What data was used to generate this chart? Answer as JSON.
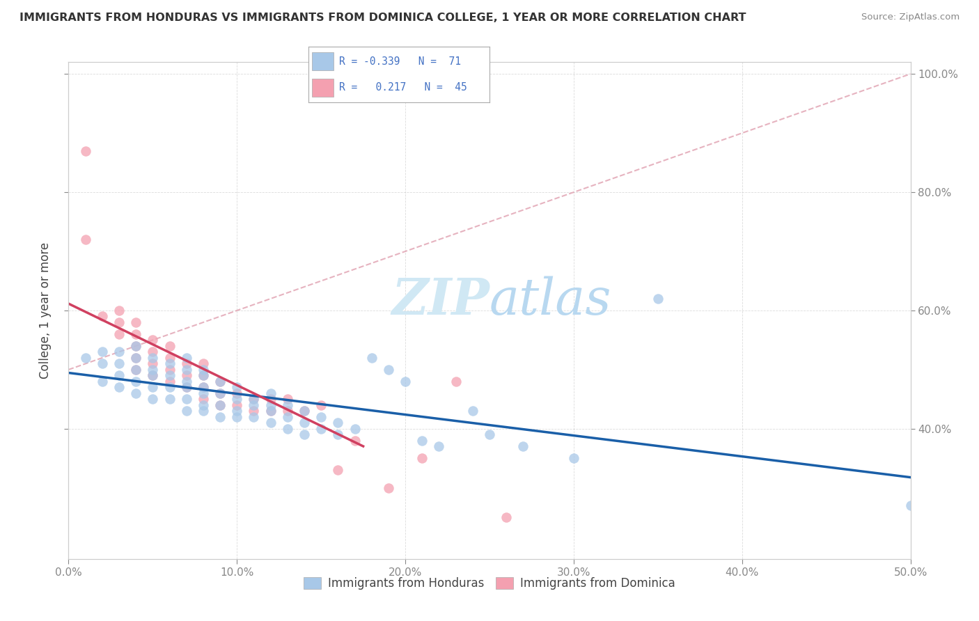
{
  "title": "IMMIGRANTS FROM HONDURAS VS IMMIGRANTS FROM DOMINICA COLLEGE, 1 YEAR OR MORE CORRELATION CHART",
  "source": "Source: ZipAtlas.com",
  "ylabel": "College, 1 year or more",
  "xlim": [
    0.0,
    0.5
  ],
  "ylim": [
    0.18,
    1.02
  ],
  "yticks_right": [
    0.4,
    0.6,
    0.8,
    1.0
  ],
  "ytick_labels_right": [
    "40.0%",
    "60.0%",
    "80.0%",
    "100.0%"
  ],
  "xticks": [
    0.0,
    0.1,
    0.2,
    0.3,
    0.4,
    0.5
  ],
  "xtick_labels": [
    "0.0%",
    "10.0%",
    "20.0%",
    "30.0%",
    "40.0%",
    "50.0%"
  ],
  "blue_color": "#a8c8e8",
  "pink_color": "#f4a0b0",
  "blue_line_color": "#1a5fa8",
  "pink_line_color": "#d04060",
  "dash_line_color": "#e0a0b0",
  "watermark_color": "#d0e8f4",
  "background_color": "#ffffff",
  "grid_color": "#cccccc",
  "honduras_x": [
    0.01,
    0.02,
    0.02,
    0.02,
    0.03,
    0.03,
    0.03,
    0.03,
    0.04,
    0.04,
    0.04,
    0.04,
    0.04,
    0.05,
    0.05,
    0.05,
    0.05,
    0.05,
    0.06,
    0.06,
    0.06,
    0.06,
    0.07,
    0.07,
    0.07,
    0.07,
    0.07,
    0.07,
    0.08,
    0.08,
    0.08,
    0.08,
    0.08,
    0.08,
    0.09,
    0.09,
    0.09,
    0.09,
    0.1,
    0.1,
    0.1,
    0.1,
    0.11,
    0.11,
    0.11,
    0.12,
    0.12,
    0.12,
    0.12,
    0.13,
    0.13,
    0.13,
    0.14,
    0.14,
    0.14,
    0.15,
    0.15,
    0.16,
    0.16,
    0.17,
    0.18,
    0.19,
    0.2,
    0.21,
    0.22,
    0.24,
    0.25,
    0.27,
    0.3,
    0.35,
    0.5
  ],
  "honduras_y": [
    0.52,
    0.48,
    0.51,
    0.53,
    0.47,
    0.49,
    0.51,
    0.53,
    0.46,
    0.48,
    0.5,
    0.52,
    0.54,
    0.45,
    0.47,
    0.49,
    0.5,
    0.52,
    0.45,
    0.47,
    0.49,
    0.51,
    0.43,
    0.45,
    0.47,
    0.48,
    0.5,
    0.52,
    0.43,
    0.44,
    0.46,
    0.47,
    0.49,
    0.5,
    0.42,
    0.44,
    0.46,
    0.48,
    0.42,
    0.43,
    0.45,
    0.47,
    0.42,
    0.44,
    0.45,
    0.41,
    0.43,
    0.44,
    0.46,
    0.4,
    0.42,
    0.44,
    0.39,
    0.41,
    0.43,
    0.4,
    0.42,
    0.39,
    0.41,
    0.4,
    0.52,
    0.5,
    0.48,
    0.38,
    0.37,
    0.43,
    0.39,
    0.37,
    0.35,
    0.62,
    0.27
  ],
  "dominica_x": [
    0.01,
    0.01,
    0.02,
    0.03,
    0.03,
    0.03,
    0.04,
    0.04,
    0.04,
    0.04,
    0.04,
    0.05,
    0.05,
    0.05,
    0.05,
    0.06,
    0.06,
    0.06,
    0.06,
    0.07,
    0.07,
    0.07,
    0.08,
    0.08,
    0.08,
    0.08,
    0.09,
    0.09,
    0.09,
    0.1,
    0.1,
    0.11,
    0.11,
    0.12,
    0.12,
    0.13,
    0.13,
    0.14,
    0.15,
    0.16,
    0.17,
    0.19,
    0.21,
    0.23,
    0.26
  ],
  "dominica_y": [
    0.87,
    0.72,
    0.59,
    0.56,
    0.58,
    0.6,
    0.5,
    0.52,
    0.54,
    0.56,
    0.58,
    0.49,
    0.51,
    0.53,
    0.55,
    0.48,
    0.5,
    0.52,
    0.54,
    0.47,
    0.49,
    0.51,
    0.45,
    0.47,
    0.49,
    0.51,
    0.44,
    0.46,
    0.48,
    0.44,
    0.46,
    0.43,
    0.45,
    0.43,
    0.45,
    0.43,
    0.45,
    0.43,
    0.44,
    0.33,
    0.38,
    0.3,
    0.35,
    0.48,
    0.25
  ]
}
